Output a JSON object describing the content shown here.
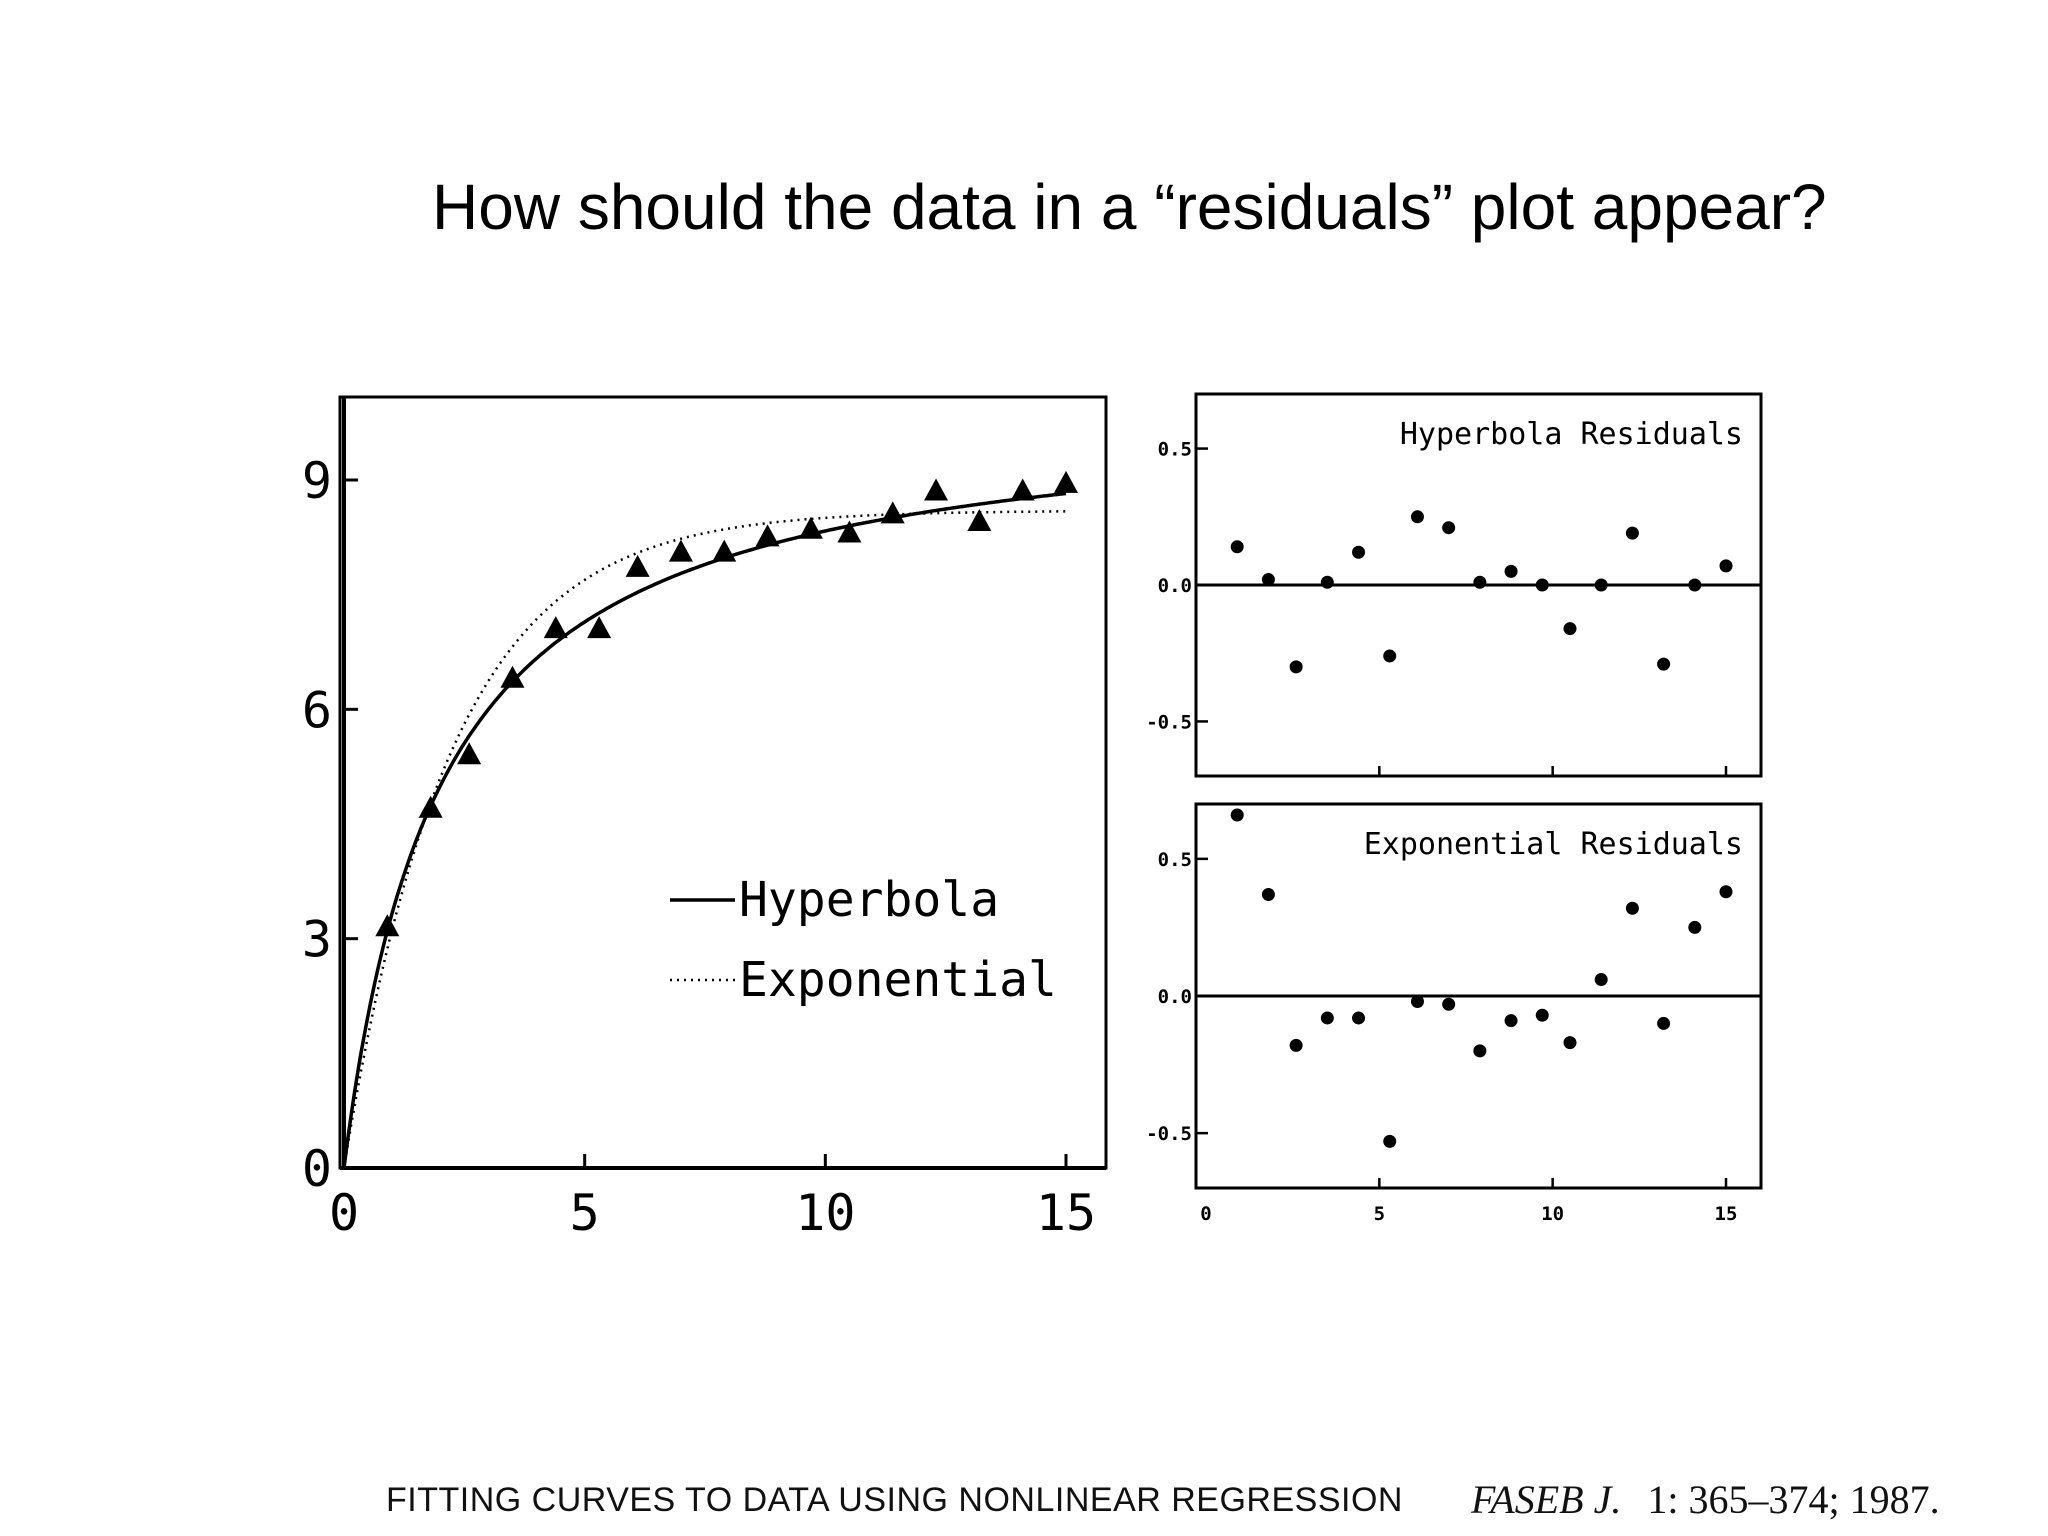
{
  "slide": {
    "title": "How should the data in a “residuals” plot appear?"
  },
  "citation": {
    "paper": "FITTING CURVES TO DATA USING NONLINEAR REGRESSION",
    "journal": "FASEB J.",
    "volume_pages_year": "1: 365–374; 1987."
  },
  "chart_data": [
    {
      "type": "line",
      "title": "",
      "xlabel": "",
      "ylabel": "",
      "xlim": [
        0,
        16
      ],
      "ylim": [
        0,
        10
      ],
      "xticks": [
        0,
        5,
        10,
        15
      ],
      "xtick_labels": [
        "0",
        "5",
        "10",
        "15"
      ],
      "yticks": [
        0,
        3,
        6,
        9
      ],
      "ytick_labels": [
        "0",
        "3",
        "6",
        "9"
      ],
      "grid": false,
      "legend": {
        "position": "lower-right",
        "entries": [
          "Hyperbola",
          "Exponential"
        ]
      },
      "points": {
        "x": [
          0.9,
          1.8,
          2.6,
          3.5,
          4.4,
          5.3,
          6.1,
          7.0,
          7.9,
          8.8,
          9.7,
          10.5,
          11.4,
          12.3,
          13.2,
          14.1,
          15.0
        ],
        "y": [
          3.15,
          4.7,
          5.4,
          6.4,
          7.05,
          7.05,
          7.85,
          8.05,
          8.05,
          8.25,
          8.35,
          8.3,
          8.55,
          8.85,
          8.45,
          8.85,
          8.95
        ]
      },
      "series": [
        {
          "name": "Hyperbola",
          "style": "solid",
          "bmax": 10.0,
          "kd": 2.0
        },
        {
          "name": "Exponential",
          "style": "dotted",
          "ymax": 8.6,
          "k": 0.45
        }
      ]
    },
    {
      "type": "scatter",
      "title": "Hyperbola Residuals",
      "xlim": [
        0,
        16
      ],
      "ylim": [
        -0.7,
        0.7
      ],
      "yticks": [
        0.5,
        0.0,
        -0.5
      ],
      "ytick_labels": [
        "0.5",
        "0.0",
        "-0.5"
      ],
      "x": [
        0.9,
        1.8,
        2.6,
        3.5,
        4.4,
        5.3,
        6.1,
        7.0,
        7.9,
        8.8,
        9.7,
        10.5,
        11.4,
        12.3,
        13.2,
        14.1,
        15.0
      ],
      "y": [
        0.14,
        0.02,
        -0.3,
        0.01,
        0.12,
        -0.26,
        0.25,
        0.21,
        0.01,
        0.05,
        0.0,
        -0.16,
        0.0,
        0.19,
        -0.29,
        0.0,
        0.07
      ]
    },
    {
      "type": "scatter",
      "title": "Exponential Residuals",
      "xlim": [
        0,
        16
      ],
      "ylim": [
        -0.7,
        0.7
      ],
      "xticks": [
        0,
        5,
        10,
        15
      ],
      "xtick_labels": [
        "0",
        "5",
        "10",
        "15"
      ],
      "yticks": [
        0.5,
        0.0,
        -0.5
      ],
      "ytick_labels": [
        "0.5",
        "0.0",
        "-0.5"
      ],
      "x": [
        0.9,
        1.8,
        2.6,
        3.5,
        4.4,
        5.3,
        6.1,
        7.0,
        7.9,
        8.8,
        9.7,
        10.5,
        11.4,
        12.3,
        13.2,
        14.1,
        15.0
      ],
      "y": [
        0.66,
        0.37,
        -0.18,
        -0.08,
        -0.08,
        -0.53,
        -0.02,
        -0.03,
        -0.2,
        -0.09,
        -0.07,
        -0.17,
        0.06,
        0.32,
        -0.1,
        0.25,
        0.38
      ]
    }
  ]
}
